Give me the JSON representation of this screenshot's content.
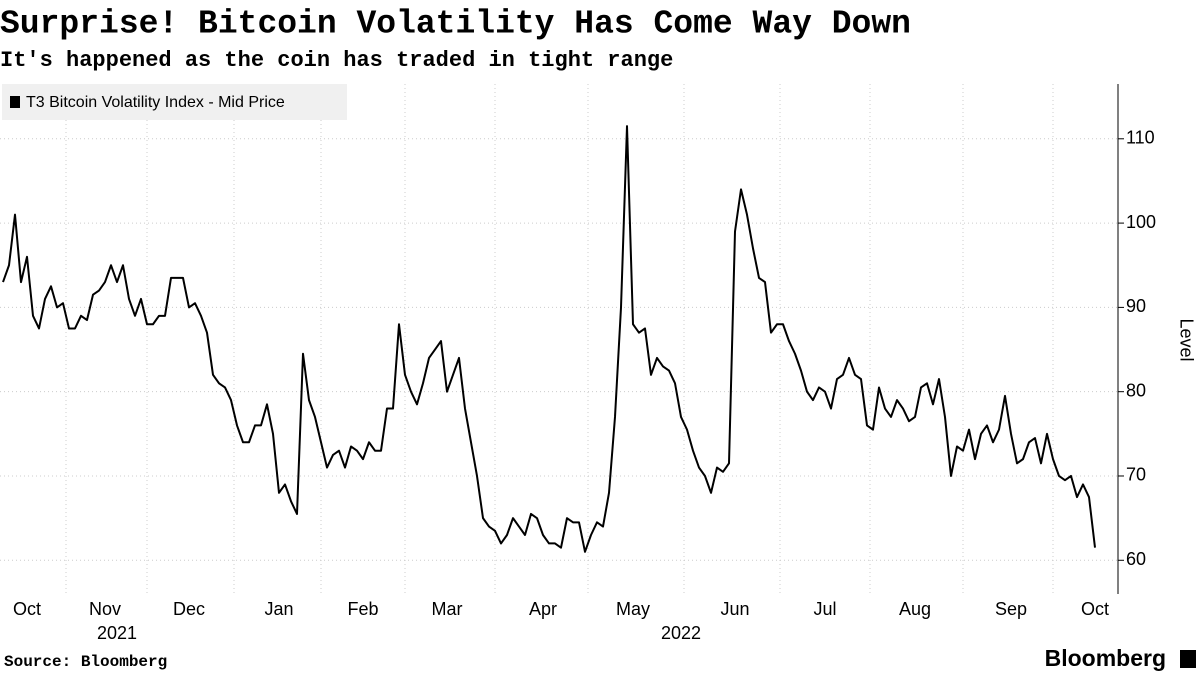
{
  "chart_data": {
    "type": "line",
    "title": "Surprise! Bitcoin Volatility Has Come Way Down",
    "subtitle": "It's happened as the coin has traded in tight range",
    "y_axis_label": "Level",
    "source": "Source: Bloomberg",
    "brand": "Bloomberg",
    "categories": [
      null,
      null,
      null,
      null,
      "Oct",
      null,
      null,
      null,
      null,
      null,
      null,
      null,
      null,
      null,
      null,
      null,
      null,
      "Nov",
      null,
      null,
      null,
      null,
      null,
      null,
      null,
      null,
      null,
      null,
      null,
      null,
      null,
      "Dec",
      null,
      null,
      null,
      null,
      null,
      null,
      null,
      null,
      null,
      null,
      null,
      null,
      null,
      null,
      "Jan",
      null,
      null,
      null,
      null,
      null,
      null,
      null,
      null,
      null,
      null,
      null,
      null,
      null,
      "Feb",
      null,
      null,
      null,
      null,
      null,
      null,
      null,
      null,
      null,
      null,
      null,
      null,
      null,
      "Mar",
      null,
      null,
      null,
      null,
      null,
      null,
      null,
      null,
      null,
      null,
      null,
      null,
      null,
      null,
      null,
      "Apr",
      null,
      null,
      null,
      null,
      null,
      null,
      null,
      null,
      null,
      null,
      null,
      null,
      null,
      null,
      "May",
      null,
      null,
      null,
      null,
      null,
      null,
      null,
      null,
      null,
      null,
      null,
      null,
      null,
      null,
      null,
      null,
      "Jun",
      null,
      null,
      null,
      null,
      null,
      null,
      null,
      null,
      null,
      null,
      null,
      null,
      null,
      null,
      "Jul",
      null,
      null,
      null,
      null,
      null,
      null,
      null,
      null,
      null,
      null,
      null,
      null,
      null,
      null,
      "Aug",
      null,
      null,
      null,
      null,
      null,
      null,
      null,
      null,
      null,
      null,
      null,
      null,
      null,
      null,
      null,
      "Sep",
      null,
      null,
      null,
      null,
      null,
      null,
      null,
      null,
      null,
      null,
      null,
      null,
      null,
      "Oct"
    ],
    "year_labels": [
      null,
      null,
      null,
      null,
      null,
      null,
      null,
      null,
      null,
      null,
      null,
      null,
      null,
      null,
      null,
      null,
      null,
      null,
      null,
      "2021",
      null,
      null,
      null,
      null,
      null,
      null,
      null,
      null,
      null,
      null,
      null,
      null,
      null,
      null,
      null,
      null,
      null,
      null,
      null,
      null,
      null,
      null,
      null,
      null,
      null,
      null,
      null,
      null,
      null,
      null,
      null,
      null,
      null,
      null,
      null,
      null,
      null,
      null,
      null,
      null,
      null,
      null,
      null,
      null,
      null,
      null,
      null,
      null,
      null,
      null,
      null,
      null,
      null,
      null,
      null,
      null,
      null,
      null,
      null,
      null,
      null,
      null,
      null,
      null,
      null,
      null,
      null,
      null,
      null,
      null,
      null,
      null,
      null,
      null,
      null,
      null,
      null,
      null,
      null,
      null,
      null,
      null,
      null,
      null,
      null,
      null,
      null,
      null,
      null,
      null,
      null,
      null,
      null,
      "2022",
      null,
      null,
      null,
      null,
      null,
      null,
      null,
      null,
      null,
      null,
      null,
      null,
      null,
      null,
      null,
      null,
      null,
      null,
      null,
      null,
      null,
      null,
      null,
      null,
      null,
      null,
      null,
      null,
      null,
      null,
      null,
      null,
      null,
      null,
      null,
      null,
      null,
      null,
      null,
      null,
      null,
      null,
      null,
      null,
      null,
      null,
      null,
      null,
      null,
      null,
      null,
      null,
      null,
      null,
      null,
      null,
      null,
      null,
      null,
      null,
      null,
      null,
      null,
      null,
      null,
      null,
      null,
      null,
      null
    ],
    "series": [
      {
        "name": "T3 Bitcoin Volatility Index - Mid Price",
        "color": "#000000",
        "values": [
          93,
          95,
          101,
          93,
          96,
          89,
          87.5,
          91,
          92.5,
          90,
          90.5,
          87.5,
          87.5,
          89,
          88.5,
          91.5,
          92,
          93,
          95,
          93,
          95,
          91,
          89,
          91,
          88,
          88,
          89,
          89,
          93.5,
          93.5,
          93.5,
          90,
          90.5,
          89,
          87,
          82,
          81,
          80.5,
          79,
          76,
          74,
          74,
          76,
          76,
          78.5,
          75,
          68,
          69,
          67,
          65.5,
          84.5,
          79,
          77,
          74,
          71,
          72.5,
          73,
          71,
          73.5,
          73,
          72,
          74,
          73,
          73,
          78,
          78,
          88,
          82,
          80,
          78.5,
          81,
          84,
          85,
          86,
          80,
          82,
          84,
          78,
          74,
          70,
          65,
          64,
          63.5,
          62,
          63,
          65,
          64,
          63,
          65.5,
          65,
          63,
          62,
          62,
          61.5,
          65,
          64.5,
          64.5,
          61,
          63,
          64.5,
          64,
          68,
          77,
          90,
          111.5,
          88,
          87,
          87.5,
          82,
          84,
          83,
          82.5,
          81,
          77,
          75.5,
          73,
          71,
          70,
          68,
          71,
          70.5,
          71.5,
          99,
          104,
          101,
          97,
          93.5,
          93,
          87,
          88,
          88,
          86,
          84.5,
          82.5,
          80,
          79,
          80.5,
          80,
          78,
          81.5,
          82,
          84,
          82,
          81.5,
          76,
          75.5,
          80.5,
          78,
          77,
          79,
          78,
          76.5,
          77,
          80.5,
          81,
          78.5,
          81.5,
          77,
          70,
          73.5,
          73,
          75.5,
          72,
          75,
          76,
          74,
          75.5,
          79.5,
          75,
          71.5,
          72,
          74,
          74.5,
          71.5,
          75,
          72,
          70,
          69.5,
          70,
          67.5,
          69,
          67.5,
          61.5
        ]
      }
    ],
    "ylim": [
      56,
      116.5
    ],
    "yticks": [
      60,
      70,
      80,
      90,
      100,
      110
    ],
    "grid": true,
    "legend": "top-left"
  }
}
